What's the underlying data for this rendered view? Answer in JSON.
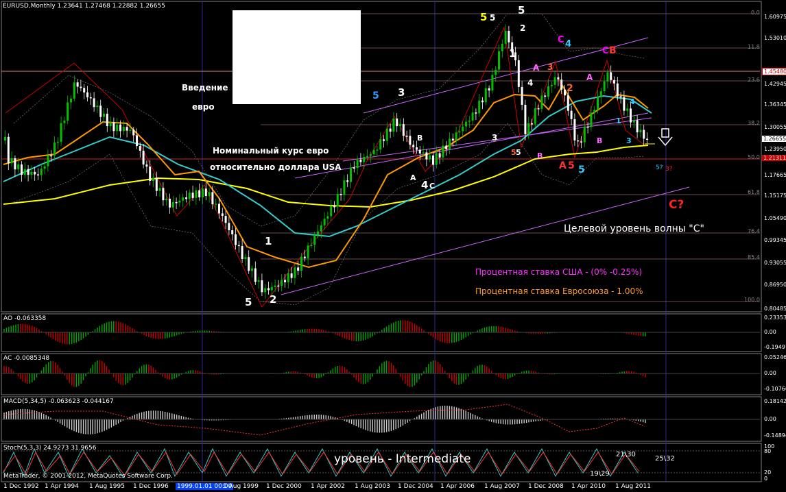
{
  "header": {
    "symbol_info": "EURUSD,Monthly  1.23641 1.27468 1.22882 1.26655",
    "copyright": "MetaTrader, © 2001-2012, MetaQuotes Software Corp."
  },
  "annotations": {
    "euro_intro_line1": "Введение",
    "euro_intro_line2": "евро",
    "nominal_rate_line1": "Номинальный курс  евро",
    "nominal_rate_line2": "относительно доллара USA",
    "target_level": "Целевой уровень волны \"С\"",
    "us_rate": "Процентная ставка США - (0% -0.25%)",
    "eu_rate": "Процентная ставка Евросоюза - 1.00%",
    "level": "уровень  -  Intermediate",
    "c_question": "C?",
    "five_question": "5?",
    "three_question": "3?"
  },
  "price_axis": {
    "labels": [
      "1.60975",
      "1.53010",
      "1.45480",
      "1.42945",
      "1.36345",
      "1.30055",
      "1.26655",
      "1.23950",
      "1.21311",
      "1.17665",
      "1.15175",
      "1.05490",
      "0.99345",
      "0.93055",
      "0.86950",
      "0.80485"
    ],
    "current_price": "1.26655",
    "highlight_price": "1.45480",
    "red_price": "1.21311"
  },
  "fib_levels": [
    "0.0",
    "11.8",
    "23.6",
    "38.2",
    "50.0",
    "61.8",
    "76.4",
    "85.4",
    "100.0"
  ],
  "date_axis": {
    "labels": [
      "1 Dec 1992",
      "1 Apr 1994",
      "1 Aug 1995",
      "1 Dec 1996",
      "1 Aug 1999",
      "1 Dec 2000",
      "1 Apr 2002",
      "1 Aug 2003",
      "1 Dec 2004",
      "1 Apr 2006",
      "1 Aug 2007",
      "1 Dec 2008",
      "1 Apr 2010",
      "1 Aug 2011"
    ],
    "highlighted": "1999.01.01 00:00"
  },
  "indicators": {
    "ao": {
      "label": "AO -0.063358",
      "scale": [
        "0.23353",
        "0.00",
        "-0.19497"
      ]
    },
    "ac": {
      "label": "AC -0.0085348",
      "scale": [
        "0.05246",
        "0.00",
        "-0.10766"
      ]
    },
    "macd": {
      "label": "MACD(5,34,5) -0.063623 -0.044167",
      "scale": [
        "0.18142",
        "0.00",
        "-0.14894"
      ]
    },
    "stoch": {
      "label": "Stoch(5,3,3) 24.9273 31.9656",
      "scale": [
        "100",
        "80",
        "20",
        "0"
      ],
      "readings": [
        "21\\30",
        "25\\32",
        "19\\29"
      ]
    }
  },
  "wave_labels": {
    "white": [
      "5",
      "5",
      "1",
      "2",
      "3",
      "4",
      "3",
      "4",
      "5",
      "1",
      "2",
      "4",
      "3",
      "5",
      "3",
      "5",
      "B",
      "A",
      "C",
      "4"
    ],
    "colored": [
      "C",
      "B",
      "A",
      "5",
      "1",
      "2",
      "3",
      "4",
      "A",
      "B",
      "C",
      "5",
      "A",
      "B",
      "C",
      "1",
      "2",
      "3",
      "4",
      "5"
    ]
  },
  "colors": {
    "bull_candle": "#00c000",
    "bear_candle": "#ffffff",
    "ma_yellow": "#ffff00",
    "ma_orange": "#ff9900",
    "ma_cyan": "#33cccc",
    "zigzag_red": "#cc0000",
    "channel_violet": "#cc66ff",
    "us_rate_text": "#ff33ff",
    "eu_rate_text": "#ff9933",
    "vline_blue": "#3333aa",
    "fib_pink": "#ffb0b0"
  }
}
